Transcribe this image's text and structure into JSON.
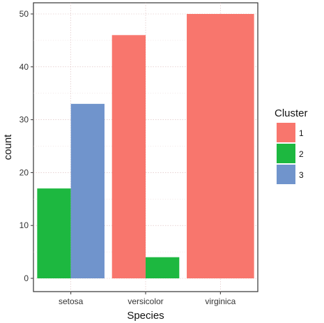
{
  "chart_data": {
    "type": "bar",
    "title": "",
    "xlabel": "Species",
    "ylabel": "count",
    "categories": [
      "setosa",
      "versicolor",
      "virginica"
    ],
    "series": [
      {
        "name": "1",
        "color": "#F8766D",
        "values": [
          0,
          46,
          50
        ]
      },
      {
        "name": "2",
        "color": "#1DB840",
        "values": [
          17,
          4,
          0
        ]
      },
      {
        "name": "3",
        "color": "#7094CC",
        "values": [
          33,
          0,
          0
        ]
      }
    ],
    "ylim": [
      0,
      50
    ],
    "yticks": [
      0,
      10,
      20,
      30,
      40,
      50
    ],
    "grid": true,
    "legend": {
      "title": "Cluster",
      "position": "right"
    }
  }
}
